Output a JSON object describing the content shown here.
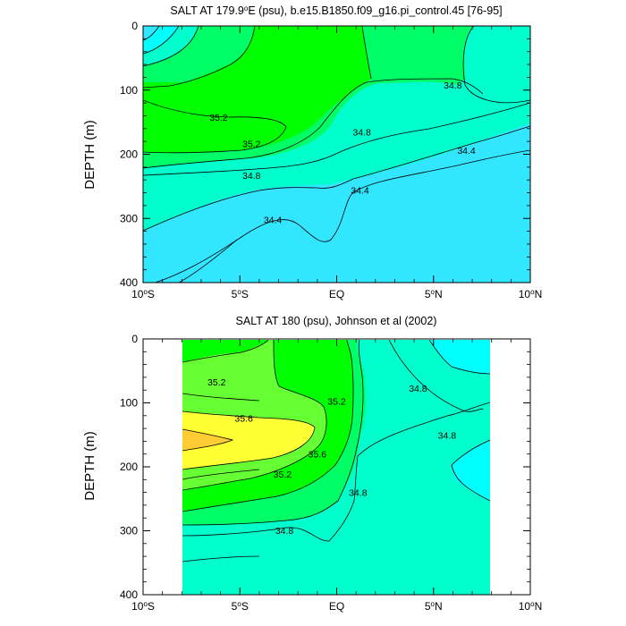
{
  "chart_data": [
    {
      "type": "filled-contour",
      "title": "SALT AT 179.9°E (psu), b.e15.B1850.f09_g16.pi_control.45 [76-95]",
      "title_parts": {
        "pre": "SALT AT 179.9",
        "sup": "o",
        "post": "E (psu), b.e15.B1850.f09_g16.pi_control.45 [76-95]"
      },
      "ylabel": "DEPTH (m)",
      "xlim": [
        -10,
        10
      ],
      "ylim": [
        400,
        0
      ],
      "x_ticks": [
        {
          "value": -10,
          "num": "10",
          "sup": "o",
          "hem": "S"
        },
        {
          "value": -5,
          "num": "5",
          "sup": "o",
          "hem": "S"
        },
        {
          "value": 0,
          "num": "EQ",
          "sup": "",
          "hem": ""
        },
        {
          "value": 5,
          "num": "5",
          "sup": "o",
          "hem": "N"
        },
        {
          "value": 10,
          "num": "10",
          "sup": "o",
          "hem": "N"
        }
      ],
      "y_ticks": [
        0,
        100,
        200,
        300,
        400
      ],
      "levels": [
        {
          "value": 34.4,
          "color": "#33e6ff"
        },
        {
          "value": 34.6,
          "color": "#00ffff"
        },
        {
          "value": 34.8,
          "color": "#00ffcc"
        },
        {
          "value": 35.0,
          "color": "#00ff66"
        },
        {
          "value": 35.2,
          "color": "#00ff00"
        },
        {
          "value": 35.4,
          "color": "#66ff33"
        },
        {
          "value": 35.6,
          "color": "#ffff33"
        },
        {
          "value": 35.8,
          "color": "#ffcc33"
        }
      ],
      "contour_labels": [
        {
          "x": -6.1,
          "y": 142,
          "text": "35.2"
        },
        {
          "x": -4.4,
          "y": 183,
          "text": "35.2"
        },
        {
          "x": 6.0,
          "y": 92,
          "text": "34.8"
        },
        {
          "x": 1.3,
          "y": 165,
          "text": "34.8"
        },
        {
          "x": -4.4,
          "y": 233,
          "text": "34.8"
        },
        {
          "x": 6.7,
          "y": 194,
          "text": "34.4"
        },
        {
          "x": 1.2,
          "y": 256,
          "text": "34.4"
        },
        {
          "x": -3.3,
          "y": 302,
          "text": "34.4"
        }
      ]
    },
    {
      "type": "filled-contour",
      "title": "SALT AT 180 (psu), Johnson et al (2002)",
      "title_parts": {
        "pre": "SALT AT 180 (psu), Johnson et al (2002)",
        "sup": "",
        "post": ""
      },
      "ylabel": "DEPTH (m)",
      "xlim": [
        -10,
        10
      ],
      "ylim": [
        400,
        0
      ],
      "data_extent": {
        "x": [
          -8,
          8
        ],
        "y": [
          0,
          400
        ]
      },
      "x_ticks": [
        {
          "value": -10,
          "num": "10",
          "sup": "o",
          "hem": "S"
        },
        {
          "value": -5,
          "num": "5",
          "sup": "o",
          "hem": "S"
        },
        {
          "value": 0,
          "num": "EQ",
          "sup": "",
          "hem": ""
        },
        {
          "value": 5,
          "num": "5",
          "sup": "o",
          "hem": "N"
        },
        {
          "value": 10,
          "num": "10",
          "sup": "o",
          "hem": "N"
        }
      ],
      "y_ticks": [
        0,
        100,
        200,
        300,
        400
      ],
      "levels": [
        {
          "value": 34.6,
          "color": "#00ffff"
        },
        {
          "value": 34.8,
          "color": "#00ffcc"
        },
        {
          "value": 35.0,
          "color": "#00ff66"
        },
        {
          "value": 35.2,
          "color": "#00ff00"
        },
        {
          "value": 35.4,
          "color": "#66ff33"
        },
        {
          "value": 35.6,
          "color": "#ffff33"
        },
        {
          "value": 35.8,
          "color": "#ffcc33"
        }
      ],
      "contour_labels": [
        {
          "x": -6.2,
          "y": 67,
          "text": "35.2"
        },
        {
          "x": -4.8,
          "y": 124,
          "text": "35.6"
        },
        {
          "x": 0.0,
          "y": 97,
          "text": "35.2"
        },
        {
          "x": 4.2,
          "y": 77,
          "text": "34.8"
        },
        {
          "x": 5.7,
          "y": 150,
          "text": "34.8"
        },
        {
          "x": -1.0,
          "y": 180,
          "text": "35.6"
        },
        {
          "x": -2.8,
          "y": 211,
          "text": "35.2"
        },
        {
          "x": 1.1,
          "y": 240,
          "text": "34.8"
        },
        {
          "x": -2.7,
          "y": 299,
          "text": "34.8"
        }
      ]
    }
  ]
}
